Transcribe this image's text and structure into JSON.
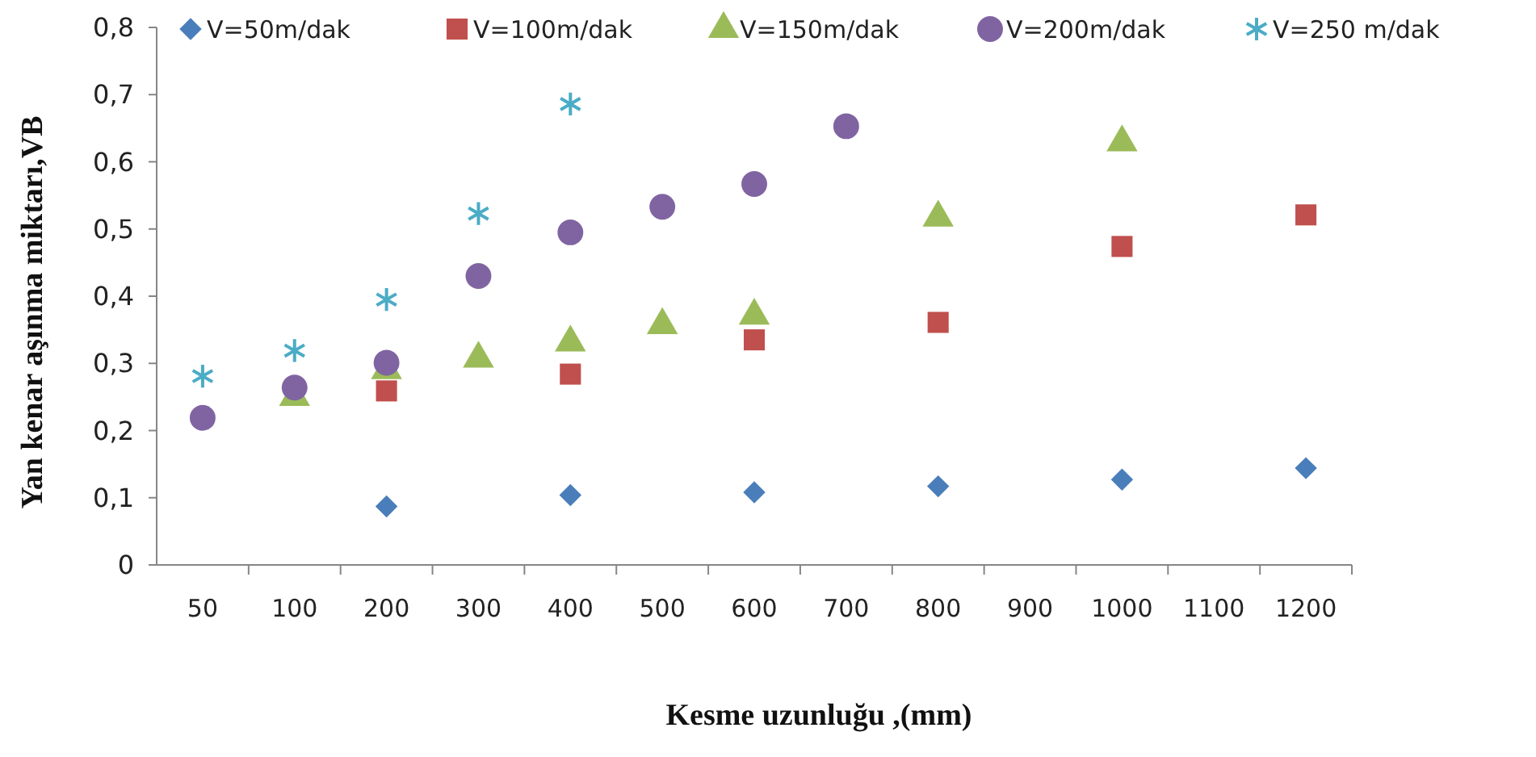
{
  "chart_data": {
    "type": "scatter",
    "xlabel": "Kesme  uzunluğu ,(mm)",
    "ylabel": "Yan kenar aşınma miktarı,VB",
    "categories": [
      "50",
      "100",
      "200",
      "300",
      "400",
      "500",
      "600",
      "700",
      "800",
      "900",
      "1000",
      "1100",
      "1200"
    ],
    "ylim": [
      0,
      0.8
    ],
    "yticks": [
      {
        "value": 0,
        "label": "0"
      },
      {
        "value": 0.1,
        "label": "0,1"
      },
      {
        "value": 0.2,
        "label": "0,2"
      },
      {
        "value": 0.3,
        "label": "0,3"
      },
      {
        "value": 0.4,
        "label": "0,4"
      },
      {
        "value": 0.5,
        "label": "0,5"
      },
      {
        "value": 0.6,
        "label": "0,6"
      },
      {
        "value": 0.7,
        "label": "0,7"
      },
      {
        "value": 0.8,
        "label": "0,8"
      }
    ],
    "grid": false,
    "legend": "top",
    "series": [
      {
        "name": "V=50m/dak",
        "color": "#4a7ebb",
        "marker": "diamond",
        "values": [
          null,
          null,
          0.087,
          null,
          0.104,
          null,
          0.108,
          null,
          0.117,
          null,
          0.127,
          null,
          0.144
        ]
      },
      {
        "name": "V=100m/dak",
        "color": "#c0504d",
        "marker": "square",
        "values": [
          null,
          null,
          0.259,
          null,
          0.284,
          null,
          0.335,
          null,
          0.361,
          null,
          0.474,
          null,
          0.521
        ]
      },
      {
        "name": "V=150m/dak",
        "color": "#9bbb59",
        "marker": "triangle",
        "values": [
          null,
          0.25,
          0.29,
          0.307,
          0.331,
          0.357,
          0.371,
          null,
          0.517,
          null,
          0.629,
          null,
          null
        ]
      },
      {
        "name": "V=200m/dak",
        "color": "#8064a2",
        "marker": "circle",
        "values": [
          0.219,
          0.264,
          0.301,
          0.43,
          0.495,
          0.533,
          0.567,
          0.653,
          null,
          null,
          null,
          null,
          null
        ]
      },
      {
        "name": "V=250 m/dak",
        "color": "#4bacc6",
        "marker": "cross",
        "values": [
          0.281,
          0.319,
          0.395,
          0.523,
          0.686,
          null,
          null,
          null,
          null,
          null,
          null,
          null,
          null
        ]
      }
    ]
  }
}
